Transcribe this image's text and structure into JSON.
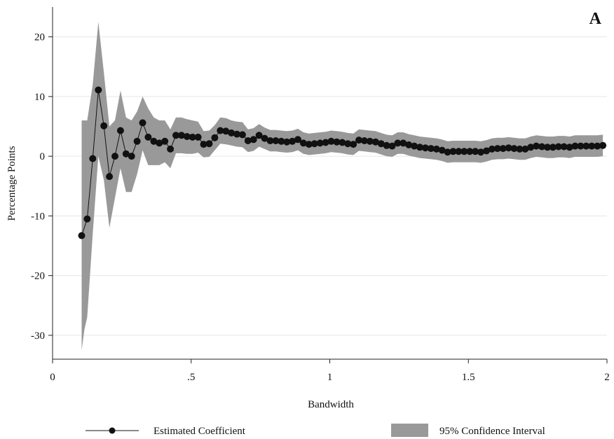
{
  "chart_data": {
    "type": "line",
    "panel_label": "A",
    "xlabel": "Bandwidth",
    "ylabel": "Percentage Points",
    "xlim": [
      0,
      2
    ],
    "ylim": [
      -34,
      25
    ],
    "x_ticks": [
      0,
      0.5,
      1,
      1.5,
      2
    ],
    "x_tick_labels": [
      "0",
      ".5",
      "1",
      "1.5",
      "2"
    ],
    "y_ticks": [
      -30,
      -20,
      -10,
      0,
      10,
      20
    ],
    "y_tick_labels": [
      "-30",
      "-20",
      "-10",
      "0",
      "10",
      "20"
    ],
    "grid": true,
    "legend_position": "bottom",
    "colors": {
      "line": "#111111",
      "band": "#999999"
    },
    "series": [
      {
        "name": "Estimated Coefficient",
        "kind": "line-markers",
        "x": [
          0.105,
          0.125,
          0.145,
          0.165,
          0.185,
          0.205,
          0.225,
          0.245,
          0.265,
          0.285,
          0.305,
          0.325,
          0.345,
          0.365,
          0.385,
          0.405,
          0.425,
          0.445,
          0.465,
          0.485,
          0.505,
          0.525,
          0.545,
          0.565,
          0.585,
          0.605,
          0.625,
          0.645,
          0.665,
          0.685,
          0.705,
          0.725,
          0.745,
          0.765,
          0.785,
          0.805,
          0.825,
          0.845,
          0.865,
          0.885,
          0.905,
          0.925,
          0.945,
          0.965,
          0.985,
          1.005,
          1.025,
          1.045,
          1.065,
          1.085,
          1.105,
          1.125,
          1.145,
          1.165,
          1.185,
          1.205,
          1.225,
          1.245,
          1.265,
          1.285,
          1.305,
          1.325,
          1.345,
          1.365,
          1.385,
          1.405,
          1.425,
          1.445,
          1.465,
          1.485,
          1.505,
          1.525,
          1.545,
          1.565,
          1.585,
          1.605,
          1.625,
          1.645,
          1.665,
          1.685,
          1.705,
          1.725,
          1.745,
          1.765,
          1.785,
          1.805,
          1.825,
          1.845,
          1.865,
          1.885,
          1.905,
          1.925,
          1.945,
          1.965,
          1.985
        ],
        "values": [
          -13.3,
          -10.5,
          -0.4,
          11.1,
          5.1,
          -3.4,
          0.0,
          4.3,
          0.4,
          0.0,
          2.5,
          5.6,
          3.2,
          2.5,
          2.2,
          2.5,
          1.2,
          3.5,
          3.5,
          3.3,
          3.2,
          3.2,
          2.0,
          2.1,
          3.1,
          4.3,
          4.2,
          3.9,
          3.7,
          3.6,
          2.6,
          2.8,
          3.5,
          3.0,
          2.6,
          2.6,
          2.5,
          2.4,
          2.5,
          2.8,
          2.2,
          2.0,
          2.1,
          2.2,
          2.3,
          2.5,
          2.4,
          2.3,
          2.1,
          2.0,
          2.7,
          2.6,
          2.5,
          2.4,
          2.1,
          1.8,
          1.7,
          2.2,
          2.2,
          1.9,
          1.7,
          1.5,
          1.4,
          1.3,
          1.2,
          1.0,
          0.7,
          0.8,
          0.8,
          0.8,
          0.8,
          0.8,
          0.7,
          0.9,
          1.2,
          1.3,
          1.3,
          1.4,
          1.3,
          1.2,
          1.2,
          1.5,
          1.7,
          1.6,
          1.5,
          1.5,
          1.6,
          1.6,
          1.5,
          1.7,
          1.7,
          1.7,
          1.7,
          1.7,
          1.8
        ]
      },
      {
        "name": "95% Confidence Interval",
        "kind": "band",
        "x": [
          0.105,
          0.115,
          0.125,
          0.145,
          0.165,
          0.185,
          0.205,
          0.225,
          0.245,
          0.265,
          0.285,
          0.305,
          0.325,
          0.345,
          0.365,
          0.385,
          0.405,
          0.425,
          0.445,
          0.465,
          0.485,
          0.505,
          0.525,
          0.545,
          0.565,
          0.585,
          0.605,
          0.625,
          0.645,
          0.665,
          0.685,
          0.705,
          0.725,
          0.745,
          0.765,
          0.785,
          0.805,
          0.825,
          0.845,
          0.865,
          0.885,
          0.905,
          0.925,
          0.945,
          0.965,
          0.985,
          1.005,
          1.025,
          1.045,
          1.065,
          1.085,
          1.105,
          1.125,
          1.145,
          1.165,
          1.185,
          1.205,
          1.225,
          1.245,
          1.265,
          1.285,
          1.305,
          1.325,
          1.345,
          1.365,
          1.385,
          1.405,
          1.425,
          1.445,
          1.465,
          1.485,
          1.505,
          1.525,
          1.545,
          1.565,
          1.585,
          1.605,
          1.625,
          1.645,
          1.665,
          1.685,
          1.705,
          1.725,
          1.745,
          1.765,
          1.785,
          1.805,
          1.825,
          1.845,
          1.865,
          1.885,
          1.905,
          1.925,
          1.945,
          1.965,
          1.985
        ],
        "upper": [
          6.0,
          6.0,
          6.0,
          12.0,
          22.5,
          14.0,
          5.0,
          6.0,
          11.0,
          6.5,
          6.0,
          7.5,
          10.0,
          8.0,
          6.5,
          6.0,
          6.0,
          4.5,
          6.5,
          6.5,
          6.2,
          6.0,
          5.8,
          4.2,
          4.3,
          5.2,
          6.5,
          6.4,
          6.0,
          5.8,
          5.7,
          4.5,
          4.7,
          5.4,
          4.8,
          4.4,
          4.4,
          4.3,
          4.2,
          4.3,
          4.6,
          4.0,
          3.8,
          3.9,
          4.0,
          4.1,
          4.3,
          4.2,
          4.1,
          3.9,
          3.8,
          4.5,
          4.4,
          4.3,
          4.2,
          3.9,
          3.6,
          3.5,
          4.0,
          4.0,
          3.7,
          3.5,
          3.3,
          3.2,
          3.1,
          3.0,
          2.8,
          2.5,
          2.6,
          2.6,
          2.6,
          2.6,
          2.6,
          2.5,
          2.7,
          3.0,
          3.1,
          3.1,
          3.2,
          3.1,
          3.0,
          3.0,
          3.3,
          3.5,
          3.4,
          3.3,
          3.3,
          3.4,
          3.4,
          3.3,
          3.5,
          3.5,
          3.5,
          3.5,
          3.5,
          3.6
        ],
        "lower": [
          -32.5,
          -29.0,
          -27.0,
          -13.0,
          0.0,
          -4.0,
          -12.0,
          -7.0,
          -2.0,
          -6.0,
          -6.0,
          -3.0,
          1.0,
          -1.5,
          -1.5,
          -1.5,
          -1.0,
          -2.0,
          0.5,
          0.5,
          0.4,
          0.4,
          0.6,
          -0.2,
          -0.1,
          1.0,
          2.1,
          2.0,
          1.8,
          1.6,
          1.5,
          0.7,
          0.9,
          1.6,
          1.2,
          0.8,
          0.8,
          0.7,
          0.6,
          0.7,
          1.0,
          0.4,
          0.2,
          0.3,
          0.4,
          0.5,
          0.7,
          0.6,
          0.5,
          0.3,
          0.2,
          0.9,
          0.8,
          0.7,
          0.6,
          0.3,
          0.0,
          -0.1,
          0.4,
          0.4,
          0.1,
          -0.1,
          -0.3,
          -0.4,
          -0.5,
          -0.6,
          -0.8,
          -1.1,
          -1.0,
          -1.0,
          -1.0,
          -1.0,
          -1.0,
          -1.1,
          -0.9,
          -0.6,
          -0.5,
          -0.5,
          -0.4,
          -0.5,
          -0.6,
          -0.6,
          -0.3,
          -0.1,
          -0.2,
          -0.3,
          -0.3,
          -0.2,
          -0.2,
          -0.3,
          -0.1,
          -0.1,
          -0.1,
          -0.1,
          -0.1,
          0.0
        ]
      }
    ]
  }
}
